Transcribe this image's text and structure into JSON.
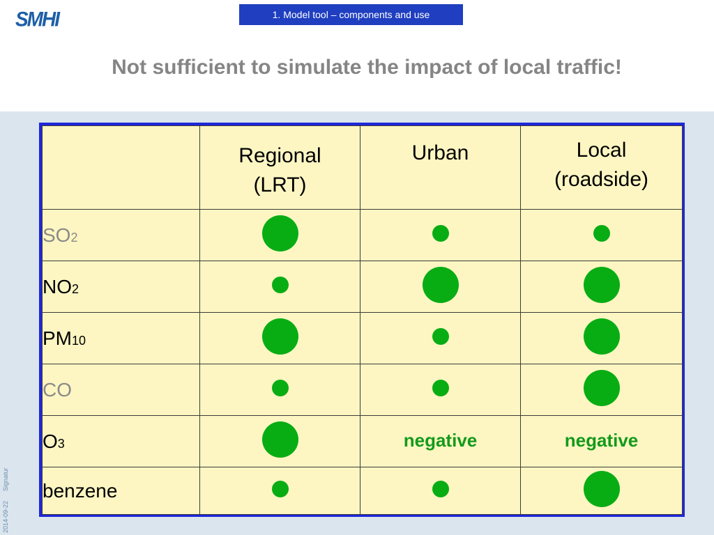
{
  "header": {
    "logo": "SMHI",
    "section_tag": "1. Model tool – components and use",
    "title": "Not sufficient to simulate the impact of local traffic!"
  },
  "footer": {
    "date": "2014-09-22",
    "signature": "Signatur"
  },
  "table": {
    "columns": [
      {
        "line1": "Regional",
        "line2": "(LRT)"
      },
      {
        "line1": "Urban",
        "line2": ""
      },
      {
        "line1": "Local",
        "line2": "(roadside)"
      }
    ],
    "rows": [
      {
        "name": "SO",
        "sub": "2",
        "cells": [
          "large",
          "small",
          "small"
        ]
      },
      {
        "name": "NO",
        "sub": "2",
        "cells": [
          "small",
          "large",
          "large"
        ]
      },
      {
        "name": "PM",
        "sub": "10",
        "cells": [
          "large",
          "small",
          "large"
        ]
      },
      {
        "name": "CO",
        "sub": "",
        "cells": [
          "small",
          "small",
          "large"
        ]
      },
      {
        "name": "O",
        "sub": "3",
        "cells": [
          "large",
          "negative",
          "negative"
        ]
      },
      {
        "name": "benzene",
        "sub": "",
        "cells": [
          "small",
          "small",
          "large"
        ]
      }
    ],
    "negative_label": "negative"
  },
  "colors": {
    "accent_blue": "#1f27d8",
    "tag_blue": "#1f3fc0",
    "dot_green": "#08ad14",
    "cell_bg": "#fdf6c2",
    "title_grey": "#858585"
  }
}
